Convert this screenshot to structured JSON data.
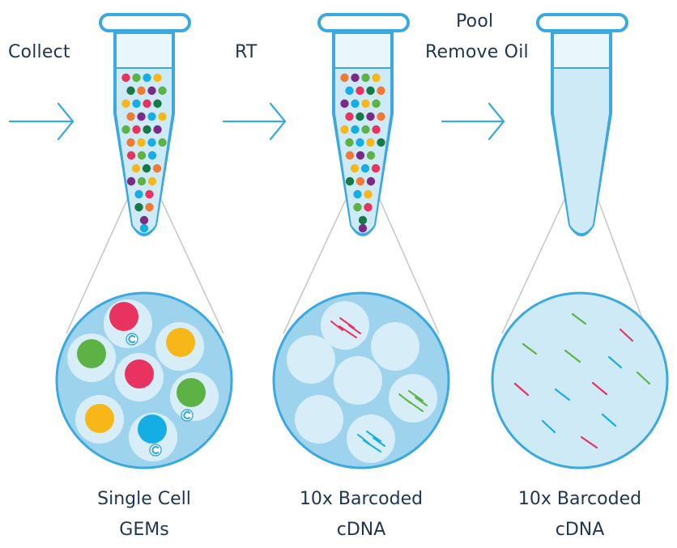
{
  "steps": {
    "collect": "Collect",
    "rt": "RT",
    "pool_line1": "Pool",
    "pool_line2": "Remove Oil"
  },
  "captions": [
    {
      "line1": "Single Cell",
      "line2": "GEMs"
    },
    {
      "line1": "10x Barcoded",
      "line2": "cDNA"
    },
    {
      "line1": "10x Barcoded",
      "line2": "cDNA"
    }
  ],
  "colors": {
    "outline": "#3aa9df",
    "liquid": "#cdeaf6",
    "tube_fill": "#e9f6fc",
    "circle_fill": "#9dd3ec",
    "gem_fill": "#d7eef8",
    "connector": "#c9c9c9",
    "text": "#1f3550",
    "red": "#e8325f",
    "green": "#5cb245",
    "yellow": "#f7b718",
    "blue": "#14aee4",
    "orange": "#ee7a34",
    "purple": "#7b2b86",
    "dark_green": "#167a46"
  },
  "icons": [
    "arrow-right-icon",
    "tube-icon",
    "gem-bead-icon",
    "cdna-strand-icon"
  ]
}
